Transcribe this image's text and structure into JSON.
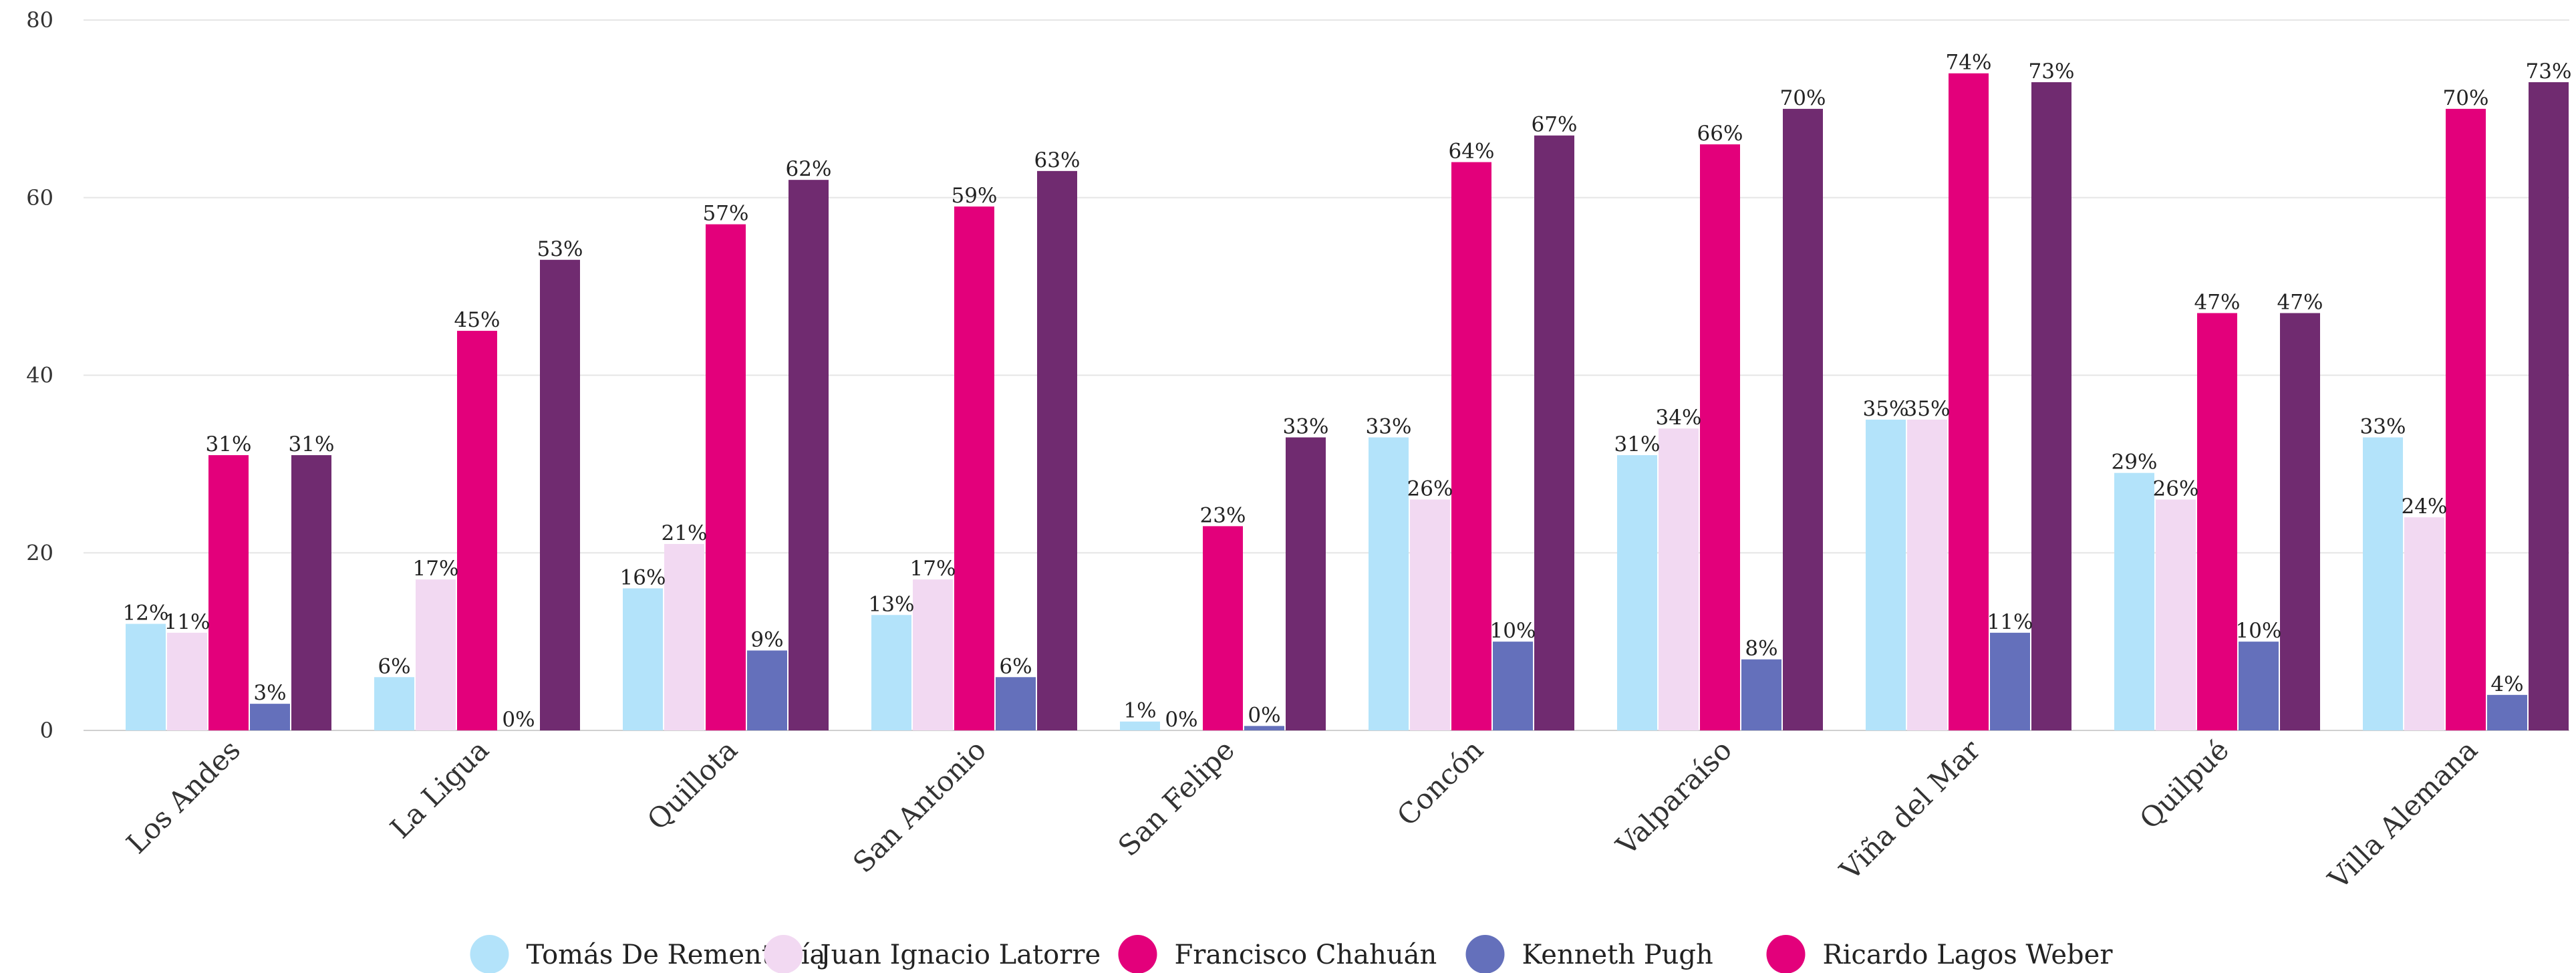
{
  "chart_data": {
    "type": "bar",
    "title": "",
    "xlabel": "",
    "ylabel": "",
    "ylim": [
      0,
      80
    ],
    "yticks": [
      0,
      20,
      40,
      60,
      80
    ],
    "grid": true,
    "legend_position": "bottom",
    "value_suffix": "%",
    "categories": [
      "Los Andes",
      "La Ligua",
      "Quillota",
      "San Antonio",
      "San Felipe",
      "Concón",
      "Valparaíso",
      "Viña del Mar",
      "Quilpué",
      "Villa Alemana"
    ],
    "series": [
      {
        "name": "Tomás De Rementería",
        "color": "#b3e3fa",
        "values": [
          12,
          6,
          16,
          13,
          1,
          33,
          31,
          35,
          29,
          33
        ],
        "labels": [
          "12%",
          "6%",
          "16%",
          "13%",
          "1%",
          "33%",
          "31%",
          "35%",
          "29%",
          "33%"
        ]
      },
      {
        "name": "Juan Ignacio Latorre",
        "color": "#f2d9f2",
        "values": [
          11,
          17,
          21,
          17,
          0,
          26,
          34,
          35,
          26,
          24
        ],
        "labels": [
          "11%",
          "17%",
          "21%",
          "17%",
          "0%",
          "26%",
          "34%",
          "35%",
          "26%",
          "24%"
        ]
      },
      {
        "name": "Francisco Chahuán",
        "color": "#e3007b",
        "values": [
          31,
          45,
          57,
          59,
          23,
          64,
          66,
          74,
          47,
          70
        ],
        "labels": [
          "31%",
          "45%",
          "57%",
          "59%",
          "23%",
          "64%",
          "66%",
          "74%",
          "47%",
          "70%"
        ]
      },
      {
        "name": "Kenneth Pugh",
        "color": "#6470bb",
        "values": [
          3,
          0,
          9,
          6,
          0.5,
          10,
          8,
          11,
          10,
          4
        ],
        "labels": [
          "3%",
          "0%",
          "9%",
          "6%",
          "0%",
          "10%",
          "8%",
          "11%",
          "10%",
          "4%"
        ]
      },
      {
        "name": "Ricardo Lagos Weber",
        "color": "#702b70",
        "legend_color": "#e3007b",
        "values": [
          31,
          53,
          62,
          63,
          33,
          67,
          70,
          73,
          47,
          73
        ],
        "labels": [
          "31%",
          "53%",
          "62%",
          "63%",
          "33%",
          "67%",
          "70%",
          "73%",
          "47%",
          "73%"
        ]
      }
    ]
  }
}
